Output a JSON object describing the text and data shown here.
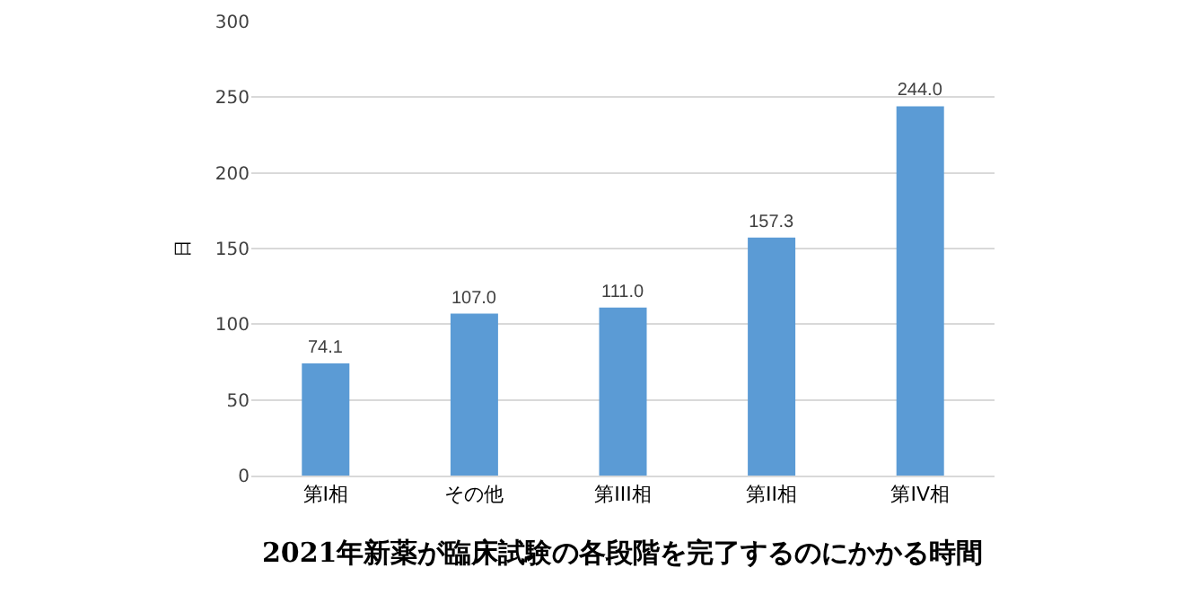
{
  "chart_data": {
    "type": "bar",
    "title": "2021年新薬が臨床試験の各段階を完了するのにかかる時間",
    "ylabel": "日",
    "categories": [
      "第I相",
      "その他",
      "第III相",
      "第II相",
      "第IV相"
    ],
    "values": [
      74.1,
      107.0,
      111.0,
      157.3,
      244.0
    ],
    "value_labels": [
      "74.1",
      "107.0",
      "111.0",
      "157.3",
      "244.0"
    ],
    "color": "#5b9bd5",
    "ylim": [
      0,
      300
    ],
    "yticks": [
      0,
      50,
      100,
      150,
      200,
      250,
      300
    ],
    "grid": "y"
  }
}
